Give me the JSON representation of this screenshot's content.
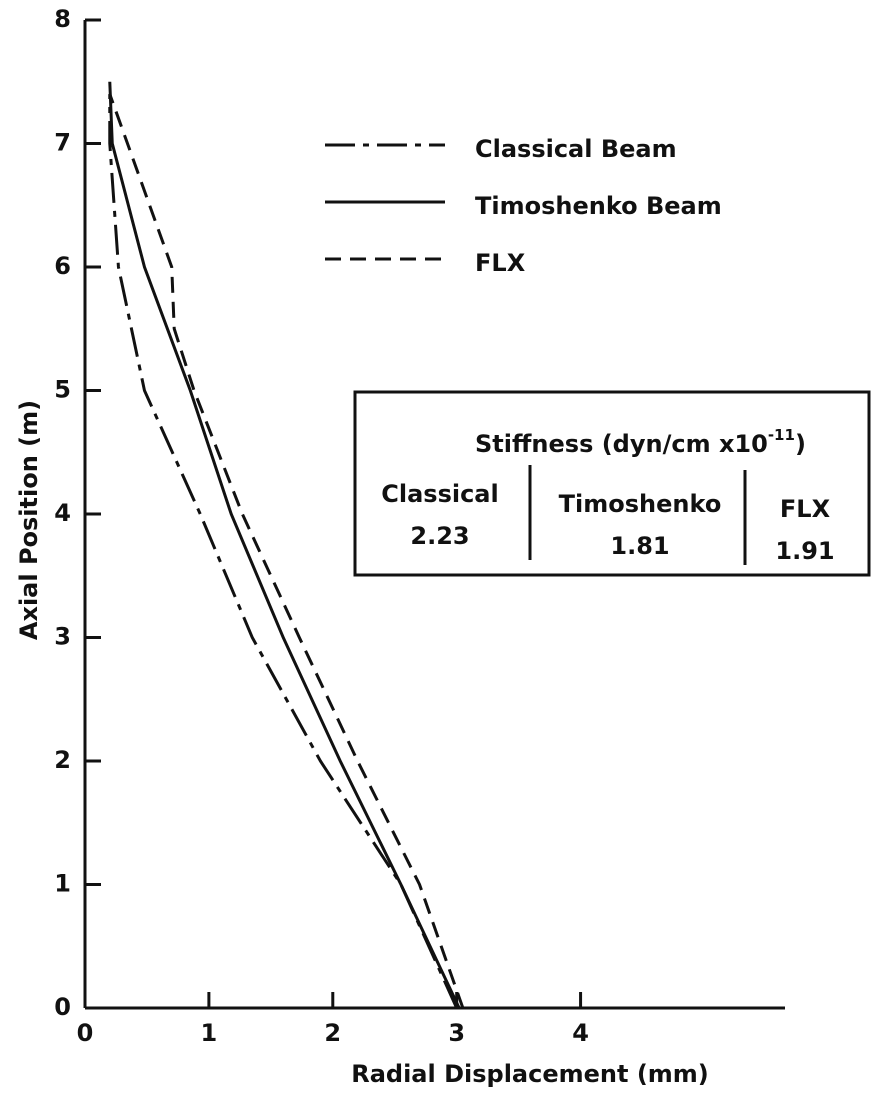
{
  "chart_data": {
    "type": "line",
    "x_label": "Radial Displacement (mm)",
    "y_label": "Axial Position (m)",
    "xlim": [
      0,
      5.65
    ],
    "ylim": [
      0,
      8
    ],
    "xticks": [
      0,
      1,
      2,
      3,
      4
    ],
    "yticks": [
      0,
      1,
      2,
      3,
      4,
      5,
      6,
      7,
      8
    ],
    "series": [
      {
        "name": "Classical Beam",
        "color": "#111111",
        "dash": "dashdot",
        "x": [
          3.0,
          2.55,
          1.9,
          1.35,
          0.93,
          0.48,
          0.27,
          0.2,
          0.2
        ],
        "y": [
          0,
          1,
          2,
          3,
          4,
          5,
          6,
          7,
          7.4
        ]
      },
      {
        "name": "Timoshenko Beam",
        "color": "#111111",
        "dash": "solid",
        "x": [
          3.02,
          2.55,
          2.06,
          1.6,
          1.18,
          0.85,
          0.48,
          0.22,
          0.2
        ],
        "y": [
          0,
          1,
          2,
          3,
          4,
          5,
          6,
          7,
          7.5
        ]
      },
      {
        "name": "FLX",
        "color": "#111111",
        "dash": "dashed",
        "x": [
          3.05,
          2.7,
          2.2,
          1.73,
          1.27,
          0.88,
          0.72,
          0.7,
          0.2
        ],
        "y": [
          0,
          1,
          2,
          3,
          4,
          5,
          5.5,
          6,
          7.4
        ]
      }
    ],
    "stiffness_table": {
      "title": "Stiffness (dyn/cm x10",
      "exponent": "-11",
      "title_end": ")",
      "columns": [
        {
          "name": "Classical",
          "value": 2.23
        },
        {
          "name": "Timoshenko",
          "value": 1.81
        },
        {
          "name": "FLX",
          "value": 1.91
        }
      ]
    }
  }
}
